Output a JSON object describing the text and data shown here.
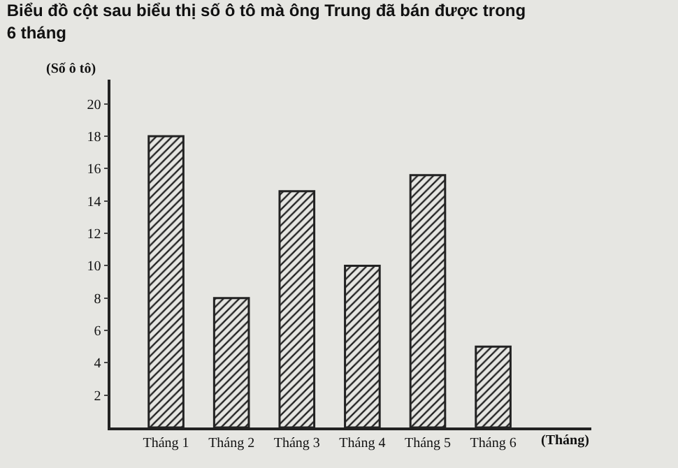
{
  "chart_data": {
    "type": "bar",
    "title": "Biểu đồ cột sau biểu thị số ô tô mà ông Trung đã bán được trong 6 tháng",
    "xlabel": "(Tháng)",
    "ylabel": "(Số ô tô)",
    "categories": [
      "Tháng 1",
      "Tháng 2",
      "Tháng 3",
      "Tháng 4",
      "Tháng 5",
      "Tháng 6"
    ],
    "values": [
      18,
      8,
      14.6,
      10,
      15.6,
      5
    ],
    "color": "#222222",
    "ylim": [
      0,
      21.5
    ],
    "yticks": [
      2,
      4,
      6,
      8,
      10,
      12,
      14,
      16,
      18,
      20
    ],
    "grid": false,
    "legend": false
  }
}
